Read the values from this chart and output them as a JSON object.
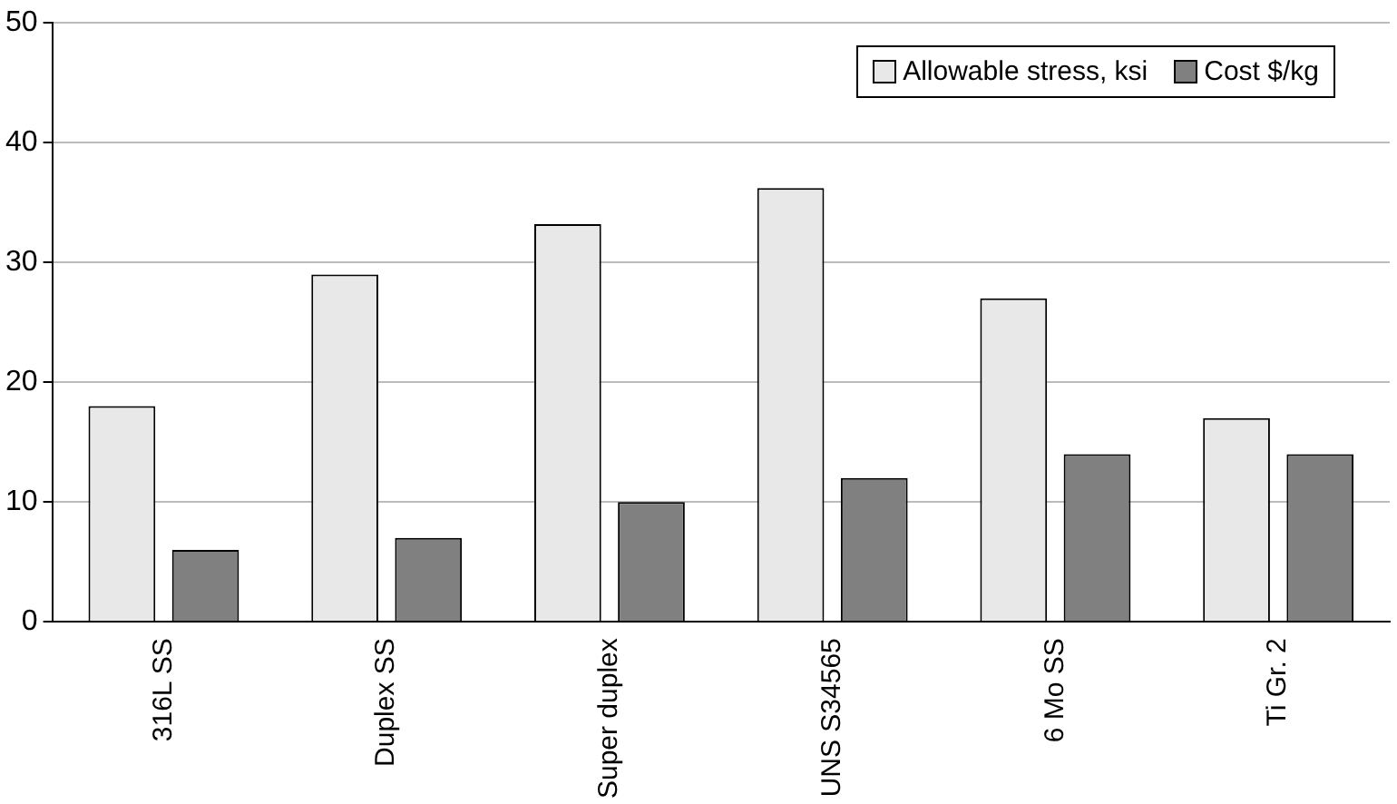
{
  "chart_data": {
    "type": "bar",
    "categories": [
      "316L SS",
      "Duplex SS",
      "Super duplex",
      "UNS S34565",
      "6 Mo SS",
      "Ti Gr. 2"
    ],
    "series": [
      {
        "name": "Allowable stress, ksi",
        "color": "#e8e8e8",
        "values": [
          18,
          29,
          33.2,
          36.2,
          27,
          17
        ]
      },
      {
        "name": "Cost $/kg",
        "color": "#808080",
        "values": [
          6,
          7,
          10,
          12,
          14,
          14
        ]
      }
    ],
    "ylim": [
      0,
      50
    ],
    "yticks": [
      0,
      10,
      20,
      30,
      40,
      50
    ],
    "grid": "y",
    "legend": "top right"
  }
}
